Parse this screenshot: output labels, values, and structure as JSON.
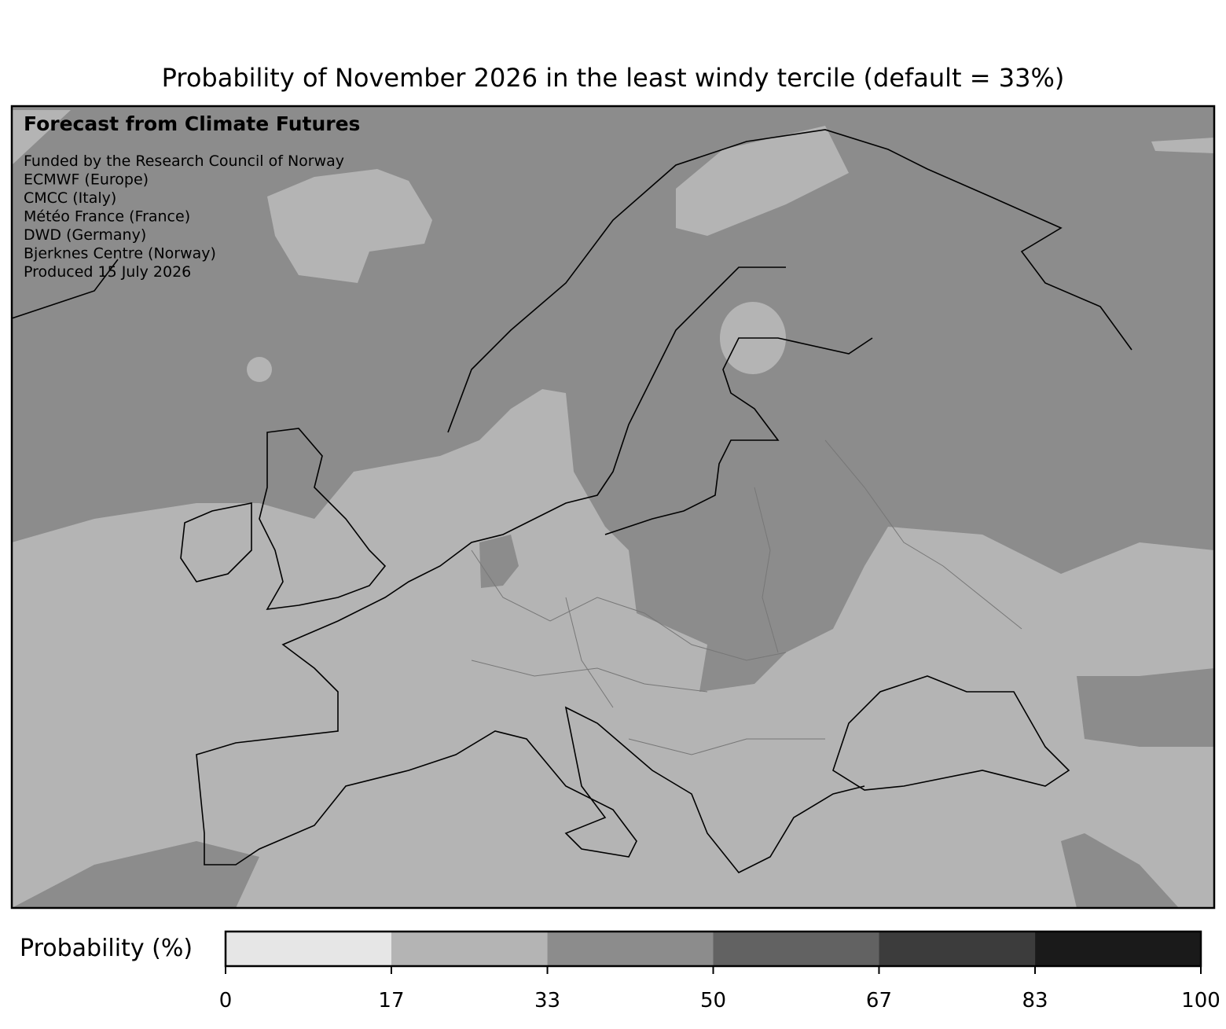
{
  "title": "Probability of November 2026 in the least windy tercile (default = 33%)",
  "annotation": {
    "heading": "Forecast from Climate Futures",
    "lines": [
      "Funded by the Research Council of Norway",
      "ECMWF (Europe)",
      "CMCC (Italy)",
      "Météo France (France)",
      "DWD (Germany)",
      "Bjerknes Centre (Norway)",
      "Produced 15 July 2026"
    ]
  },
  "colorbar": {
    "label": "Probability (%)",
    "bounds": [
      0,
      17,
      33,
      50,
      67,
      83,
      100
    ],
    "colors": [
      "#e6e6e6",
      "#b4b4b4",
      "#8c8c8c",
      "#626262",
      "#3c3c3c",
      "#1a1a1a"
    ],
    "ticks": [
      0,
      17,
      33,
      50,
      67,
      83,
      100
    ]
  }
}
